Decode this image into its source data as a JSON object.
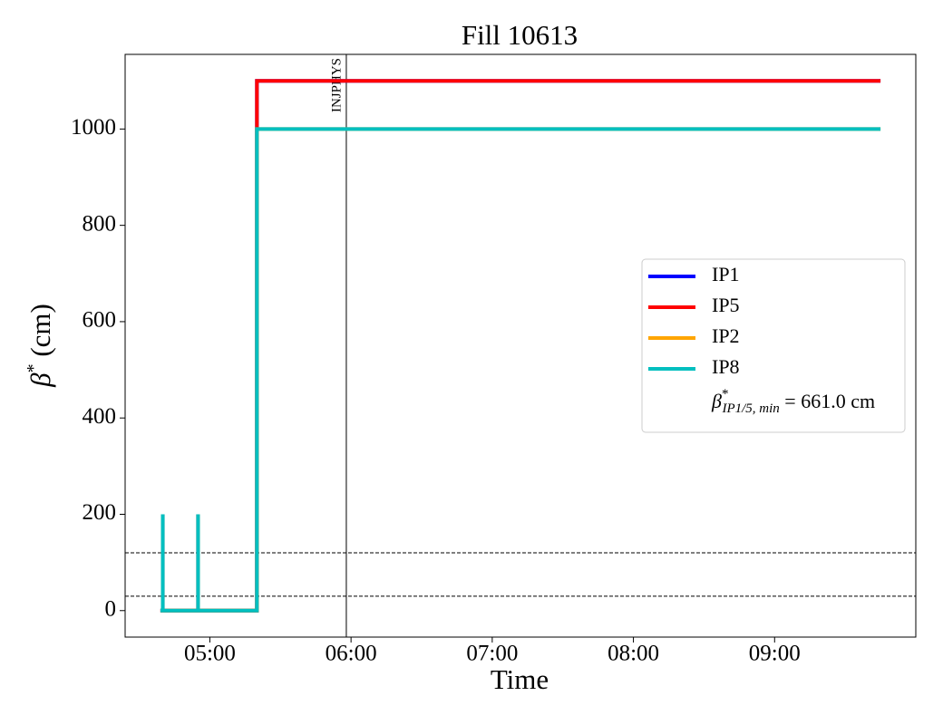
{
  "chart_data": {
    "type": "line",
    "title": "Fill 10613",
    "x_label": "Time",
    "y_label": {
      "symbol": "β",
      "sup": "*",
      "unit": " (cm)"
    },
    "x": [
      "04:39",
      "04:40",
      "04:40",
      "04:40",
      "04:55",
      "04:55",
      "04:55",
      "05:20",
      "05:20",
      "09:45"
    ],
    "series": [
      {
        "name": "IP1",
        "color": "#0000ff",
        "values": [
          0,
          0,
          200,
          0,
          0,
          200,
          0,
          0,
          1100,
          1100
        ]
      },
      {
        "name": "IP5",
        "color": "#ff0000",
        "values": [
          0,
          0,
          200,
          0,
          0,
          200,
          0,
          0,
          1100,
          1100
        ]
      },
      {
        "name": "IP2",
        "color": "#ffa500",
        "values": [
          0,
          0,
          200,
          0,
          0,
          200,
          0,
          0,
          1000,
          1000
        ]
      },
      {
        "name": "IP8",
        "color": "#00bfbf",
        "values": [
          0,
          0,
          200,
          0,
          0,
          200,
          0,
          0,
          1000,
          1000
        ]
      }
    ],
    "legend_note": {
      "symbol": "β",
      "sup": "*",
      "sub": "IP1/5, min",
      "text": " = 661.0 cm"
    },
    "legend_position": "center right",
    "xlim": [
      "04:24",
      "10:00"
    ],
    "xticks": [
      "05:00",
      "06:00",
      "07:00",
      "08:00",
      "09:00"
    ],
    "ylim": [
      -55,
      1155
    ],
    "yticks": [
      0,
      200,
      400,
      600,
      800,
      1000
    ],
    "hlines": [
      120,
      30
    ],
    "vline": {
      "x": "05:58",
      "label": "INJPHYS"
    }
  }
}
